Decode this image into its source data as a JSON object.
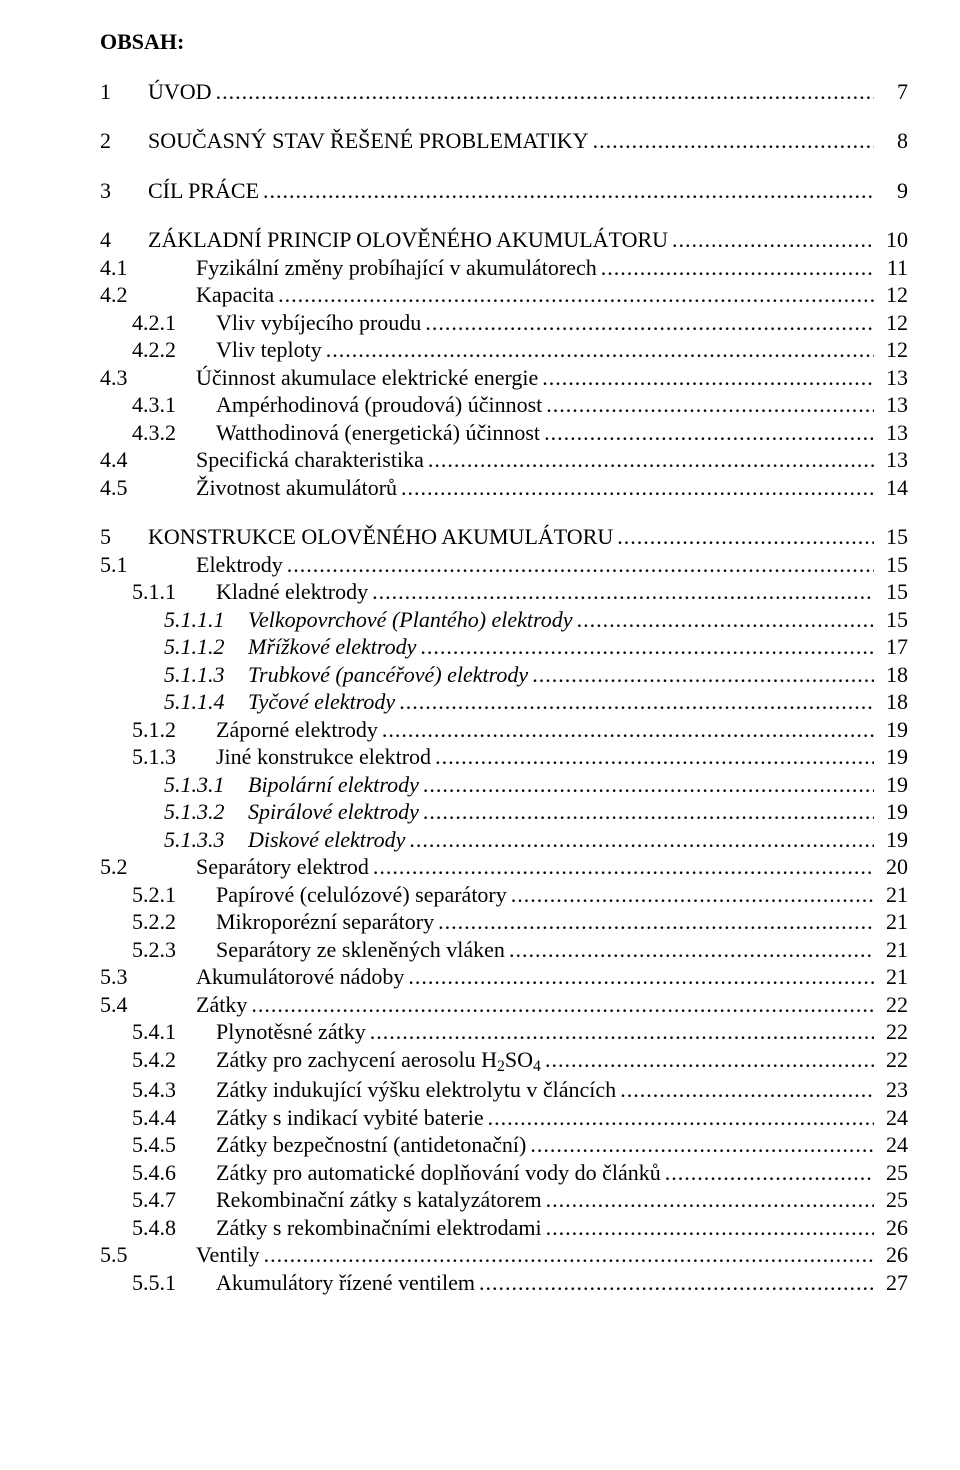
{
  "heading": "OBSAH:",
  "label_col_width_lvl0": 44,
  "label_col_width_lvl1": 92,
  "label_col_width_lvl2": 80,
  "label_col_width_lvl3": 80,
  "font_family": "Times New Roman",
  "font_size_pt": 16,
  "text_color": "#000000",
  "background_color": "#ffffff",
  "dot_color": "#000000",
  "entries": [
    {
      "level": 0,
      "num": "1",
      "title": "ÚVOD",
      "page": "7",
      "italic": false,
      "gap_before": false
    },
    {
      "level": 0,
      "num": "2",
      "title": "SOUČASNÝ STAV ŘEŠENÉ PROBLEMATIKY",
      "page": "8",
      "italic": false,
      "gap_before": true
    },
    {
      "level": 0,
      "num": "3",
      "title": "CÍL PRÁCE",
      "page": "9",
      "italic": false,
      "gap_before": true
    },
    {
      "level": 0,
      "num": "4",
      "title": "ZÁKLADNÍ PRINCIP OLOVĚNÉHO AKUMULÁTORU",
      "page": "10",
      "italic": false,
      "gap_before": true
    },
    {
      "level": 1,
      "num": "4.1",
      "title": "Fyzikální změny probíhající v akumulátorech",
      "page": "11",
      "italic": false,
      "gap_before": false
    },
    {
      "level": 1,
      "num": "4.2",
      "title": "Kapacita",
      "page": "12",
      "italic": false,
      "gap_before": false
    },
    {
      "level": 2,
      "num": "4.2.1",
      "title": "Vliv vybíjecího proudu",
      "page": "12",
      "italic": false,
      "gap_before": false
    },
    {
      "level": 2,
      "num": "4.2.2",
      "title": "Vliv teploty",
      "page": "12",
      "italic": false,
      "gap_before": false
    },
    {
      "level": 1,
      "num": "4.3",
      "title": "Účinnost akumulace elektrické energie",
      "page": "13",
      "italic": false,
      "gap_before": false
    },
    {
      "level": 2,
      "num": "4.3.1",
      "title": "Ampérhodinová (proudová) účinnost",
      "page": "13",
      "italic": false,
      "gap_before": false
    },
    {
      "level": 2,
      "num": "4.3.2",
      "title": "Watthodinová (energetická) účinnost",
      "page": "13",
      "italic": false,
      "gap_before": false
    },
    {
      "level": 1,
      "num": "4.4",
      "title": "Specifická charakteristika",
      "page": "13",
      "italic": false,
      "gap_before": false
    },
    {
      "level": 1,
      "num": "4.5",
      "title": "Životnost akumulátorů",
      "page": "14",
      "italic": false,
      "gap_before": false
    },
    {
      "level": 0,
      "num": "5",
      "title": "KONSTRUKCE OLOVĚNÉHO AKUMULÁTORU",
      "page": "15",
      "italic": false,
      "gap_before": true
    },
    {
      "level": 1,
      "num": "5.1",
      "title": "Elektrody",
      "page": "15",
      "italic": false,
      "gap_before": false
    },
    {
      "level": 2,
      "num": "5.1.1",
      "title": "Kladné elektrody",
      "page": "15",
      "italic": false,
      "gap_before": false
    },
    {
      "level": 3,
      "num": "5.1.1.1",
      "title": "Velkopovrchové (Plantého) elektrody",
      "page": "15",
      "italic": true,
      "gap_before": false
    },
    {
      "level": 3,
      "num": "5.1.1.2",
      "title": "Mřížkové elektrody",
      "page": "17",
      "italic": true,
      "gap_before": false
    },
    {
      "level": 3,
      "num": "5.1.1.3",
      "title": "Trubkové (pancéřové) elektrody",
      "page": "18",
      "italic": true,
      "gap_before": false
    },
    {
      "level": 3,
      "num": "5.1.1.4",
      "title": "Tyčové elektrody",
      "page": "18",
      "italic": true,
      "gap_before": false
    },
    {
      "level": 2,
      "num": "5.1.2",
      "title": "Záporné elektrody",
      "page": "19",
      "italic": false,
      "gap_before": false
    },
    {
      "level": 2,
      "num": "5.1.3",
      "title": "Jiné konstrukce elektrod",
      "page": "19",
      "italic": false,
      "gap_before": false
    },
    {
      "level": 3,
      "num": "5.1.3.1",
      "title": "Bipolární elektrody",
      "page": "19",
      "italic": true,
      "gap_before": false
    },
    {
      "level": 3,
      "num": "5.1.3.2",
      "title": "Spirálové elektrody",
      "page": "19",
      "italic": true,
      "gap_before": false
    },
    {
      "level": 3,
      "num": "5.1.3.3",
      "title": "Diskové elektrody",
      "page": "19",
      "italic": true,
      "gap_before": false
    },
    {
      "level": 1,
      "num": "5.2",
      "title": "Separátory elektrod",
      "page": "20",
      "italic": false,
      "gap_before": false
    },
    {
      "level": 2,
      "num": "5.2.1",
      "title": "Papírové (celulózové) separátory",
      "page": "21",
      "italic": false,
      "gap_before": false
    },
    {
      "level": 2,
      "num": "5.2.2",
      "title": "Mikroporézní separátory",
      "page": "21",
      "italic": false,
      "gap_before": false
    },
    {
      "level": 2,
      "num": "5.2.3",
      "title": "Separátory ze skleněných vláken",
      "page": "21",
      "italic": false,
      "gap_before": false
    },
    {
      "level": 1,
      "num": "5.3",
      "title": "Akumulátorové nádoby",
      "page": "21",
      "italic": false,
      "gap_before": false
    },
    {
      "level": 1,
      "num": "5.4",
      "title": "Zátky",
      "page": "22",
      "italic": false,
      "gap_before": false
    },
    {
      "level": 2,
      "num": "5.4.1",
      "title": "Plynotěsné zátky",
      "page": "22",
      "italic": false,
      "gap_before": false
    },
    {
      "level": 2,
      "num": "5.4.2",
      "title": "Zátky pro zachycení aerosolu H<sub>2</sub>SO<sub>4</sub>",
      "page": "22",
      "italic": false,
      "gap_before": false,
      "html_title": true
    },
    {
      "level": 2,
      "num": "5.4.3",
      "title": "Zátky indukující výšku elektrolytu v článcích",
      "page": "23",
      "italic": false,
      "gap_before": false
    },
    {
      "level": 2,
      "num": "5.4.4",
      "title": "Zátky s indikací vybité baterie",
      "page": "24",
      "italic": false,
      "gap_before": false
    },
    {
      "level": 2,
      "num": "5.4.5",
      "title": "Zátky bezpečnostní (antidetonační)",
      "page": "24",
      "italic": false,
      "gap_before": false
    },
    {
      "level": 2,
      "num": "5.4.6",
      "title": "Zátky pro automatické doplňování vody do článků",
      "page": "25",
      "italic": false,
      "gap_before": false
    },
    {
      "level": 2,
      "num": "5.4.7",
      "title": "Rekombinační zátky s katalyzátorem",
      "page": "25",
      "italic": false,
      "gap_before": false
    },
    {
      "level": 2,
      "num": "5.4.8",
      "title": "Zátky s rekombinačními elektrodami",
      "page": "26",
      "italic": false,
      "gap_before": false
    },
    {
      "level": 1,
      "num": "5.5",
      "title": "Ventily",
      "page": "26",
      "italic": false,
      "gap_before": false
    },
    {
      "level": 2,
      "num": "5.5.1",
      "title": "Akumulátory řízené ventilem",
      "page": "27",
      "italic": false,
      "gap_before": false
    }
  ]
}
